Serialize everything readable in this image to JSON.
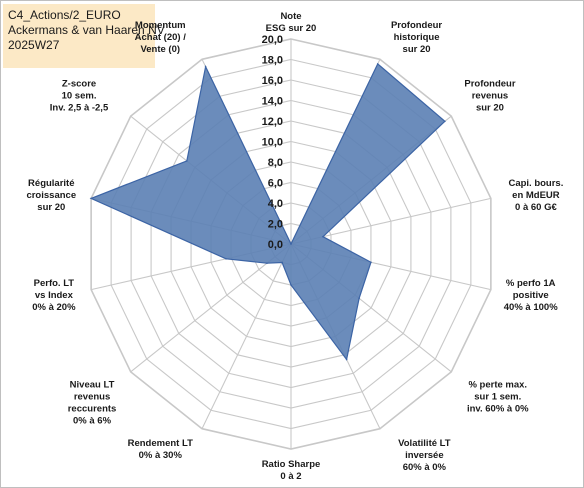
{
  "title_box": {
    "line1": "C4_Actions/2_EURO",
    "line2": "Ackermans & van Haaren NV",
    "line3": "2025W27"
  },
  "colors": {
    "fill": "#5b7fb4",
    "stroke": "#3c64a5",
    "grid": "#c8c8c8",
    "title_bg": "#fce9c6"
  },
  "chart_data": {
    "type": "radar",
    "title": "",
    "rlim": [
      0,
      20
    ],
    "tick_step": 2,
    "tick_labels": [
      "0,0",
      "2,0",
      "4,0",
      "6,0",
      "8,0",
      "10,0",
      "12,0",
      "14,0",
      "16,0",
      "18,0",
      "20,0"
    ],
    "grid": true,
    "axes": [
      {
        "label": [
          "Note",
          "ESG sur 20"
        ],
        "value": 0
      },
      {
        "label": [
          "Profondeur",
          "historique",
          "sur 20"
        ],
        "value": 19.5
      },
      {
        "label": [
          "Profondeur",
          "revenus",
          "sur 20"
        ],
        "value": 19.2
      },
      {
        "label": [
          "Capi. bours.",
          "en MdEUR",
          "0 à 60 G€"
        ],
        "value": 3.2
      },
      {
        "label": [
          "% perfo 1A",
          "positive",
          "40% à 100%"
        ],
        "value": 8.0
      },
      {
        "label": [
          "% perte max.",
          "sur 1 sem.",
          "inv. 60% à 0%"
        ],
        "value": 8.5
      },
      {
        "label": [
          "Volatilité LT",
          "inversée",
          "60% à 0%"
        ],
        "value": 12.5
      },
      {
        "label": [
          "Ratio Sharpe",
          "0 à 2"
        ],
        "value": 4.0
      },
      {
        "label": [
          "Rendement LT",
          "0% à 30%"
        ],
        "value": 2.0
      },
      {
        "label": [
          "Niveau LT",
          "revenus",
          "reccurents",
          "0% à 6%"
        ],
        "value": 3.0
      },
      {
        "label": [
          "Perfo. LT",
          "vs Index",
          "0% à 20%"
        ],
        "value": 6.5
      },
      {
        "label": [
          "Régularité",
          "croissance",
          "sur 20"
        ],
        "value": 20.0
      },
      {
        "label": [
          "Z-score",
          "10 sem.",
          "Inv. 2,5 à -2,5"
        ],
        "value": 13.0
      },
      {
        "label": [
          "Momentum",
          "Achat (20) /",
          "Vente (0)"
        ],
        "value": 19.2
      }
    ]
  }
}
